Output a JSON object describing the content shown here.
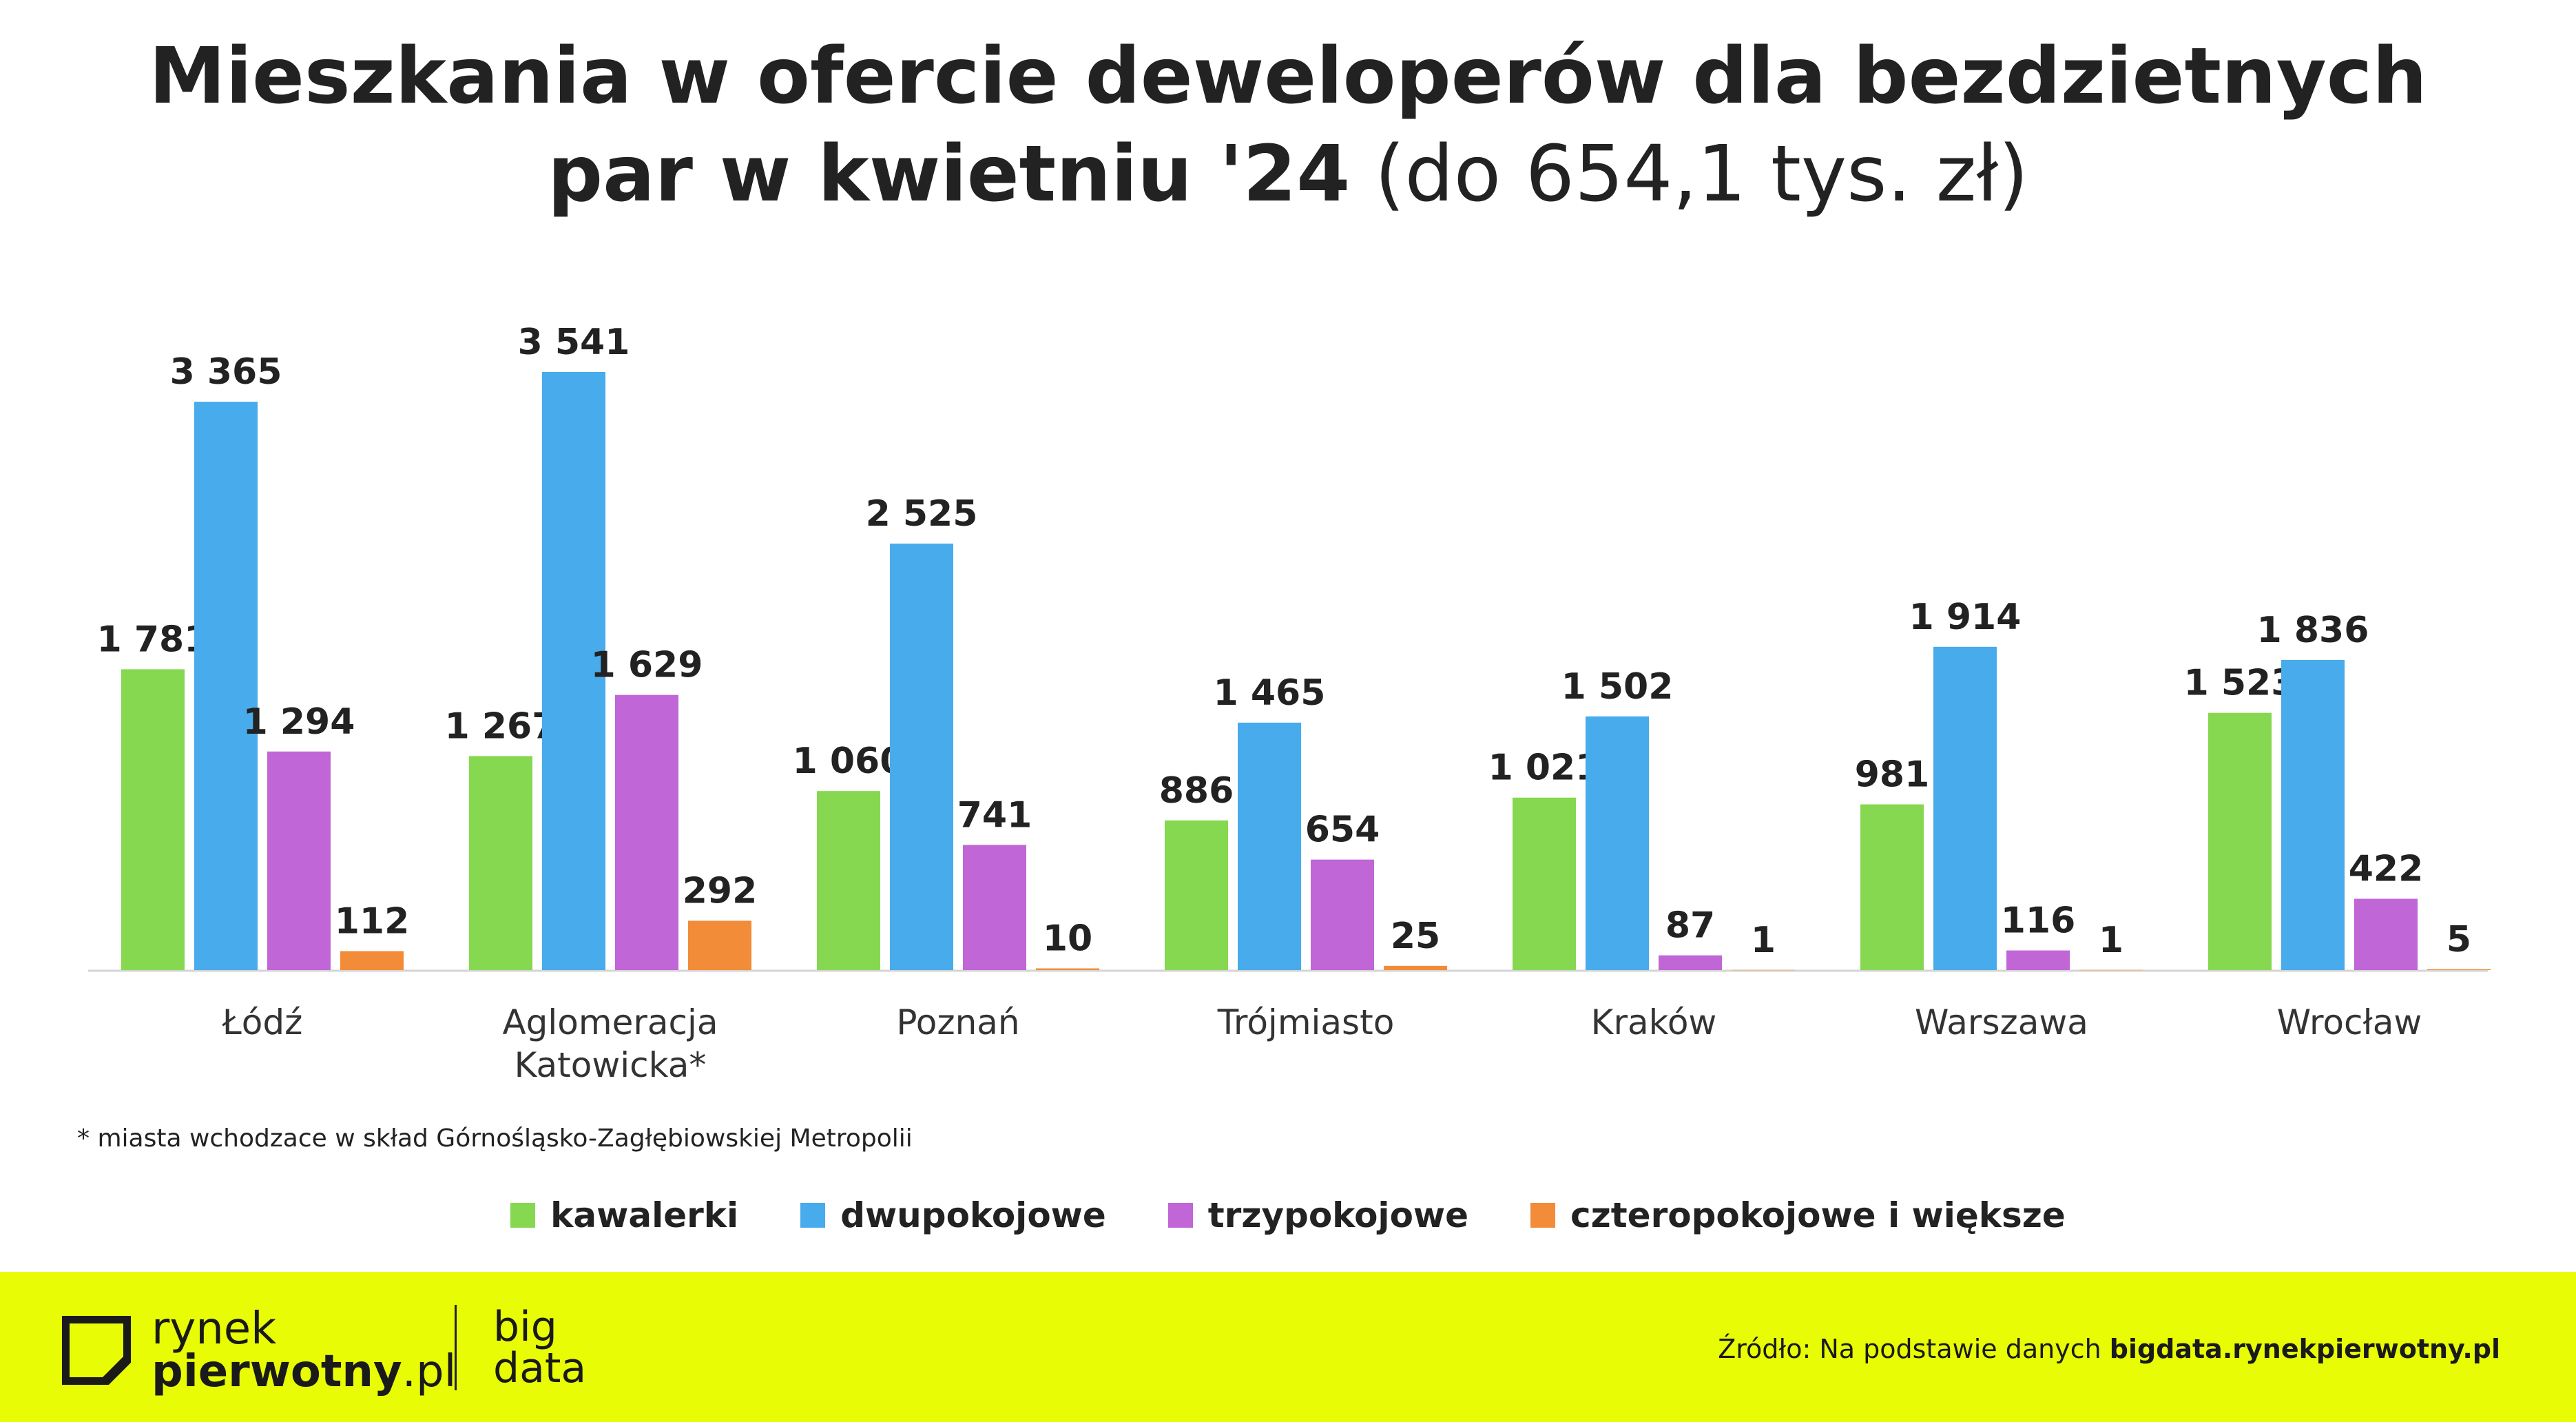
{
  "title": {
    "line1": "Mieszkania w ofercie deweloperów dla bezdzietnych",
    "line2_bold": "par w kwietniu '24",
    "line2_light": "(do 654,1  tys. zł)"
  },
  "chart_data": {
    "type": "bar",
    "title": "Mieszkania w ofercie deweloperów dla bezdzietnych par w kwietniu '24 (do 654,1  tys. zł)",
    "xlabel": "",
    "ylabel": "",
    "ylim": [
      0,
      3541
    ],
    "grid": false,
    "legend_position": "bottom",
    "categories": [
      "Łódź",
      "Aglomeracja\nKatowicka*",
      "Poznań",
      "Trójmiasto",
      "Kraków",
      "Warszawa",
      "Wrocław"
    ],
    "series": [
      {
        "name": "kawalerki",
        "color": "#85d84f",
        "values": [
          1781,
          1267,
          1060,
          886,
          1021,
          981,
          1523
        ],
        "labels": [
          "1 781",
          "1 267",
          "1 060",
          "886",
          "1 021",
          "981",
          "1 523"
        ]
      },
      {
        "name": "dwupokojowe",
        "color": "#47abec",
        "values": [
          3365,
          3541,
          2525,
          1465,
          1502,
          1914,
          1836
        ],
        "labels": [
          "3 365",
          "3 541",
          "2 525",
          "1 465",
          "1 502",
          "1 914",
          "1 836"
        ]
      },
      {
        "name": "trzypokojowe",
        "color": "#c066d6",
        "values": [
          1294,
          1629,
          741,
          654,
          87,
          116,
          422
        ],
        "labels": [
          "1 294",
          "1 629",
          "741",
          "654",
          "87",
          "116",
          "422"
        ]
      },
      {
        "name": "czteropokojowe i większe",
        "color": "#f28c38",
        "values": [
          112,
          292,
          10,
          25,
          1,
          1,
          5
        ],
        "labels": [
          "112",
          "292",
          "10",
          "25",
          "1",
          "1",
          "5"
        ]
      }
    ]
  },
  "footnote": "* miasta wchodzace w skład Górnośląsko-Zagłębiowskiej Metropolii",
  "footer": {
    "background": "#e8fc05",
    "logo_line1": "rynek",
    "logo_line2_bold": "pierwotny",
    "logo_line2_suffix": ".pl",
    "product_line1": "big",
    "product_line2": "data",
    "source_prefix": "Źródło: Na podstawie danych ",
    "source_bold": "bigdata.rynekpierwotny.pl"
  }
}
